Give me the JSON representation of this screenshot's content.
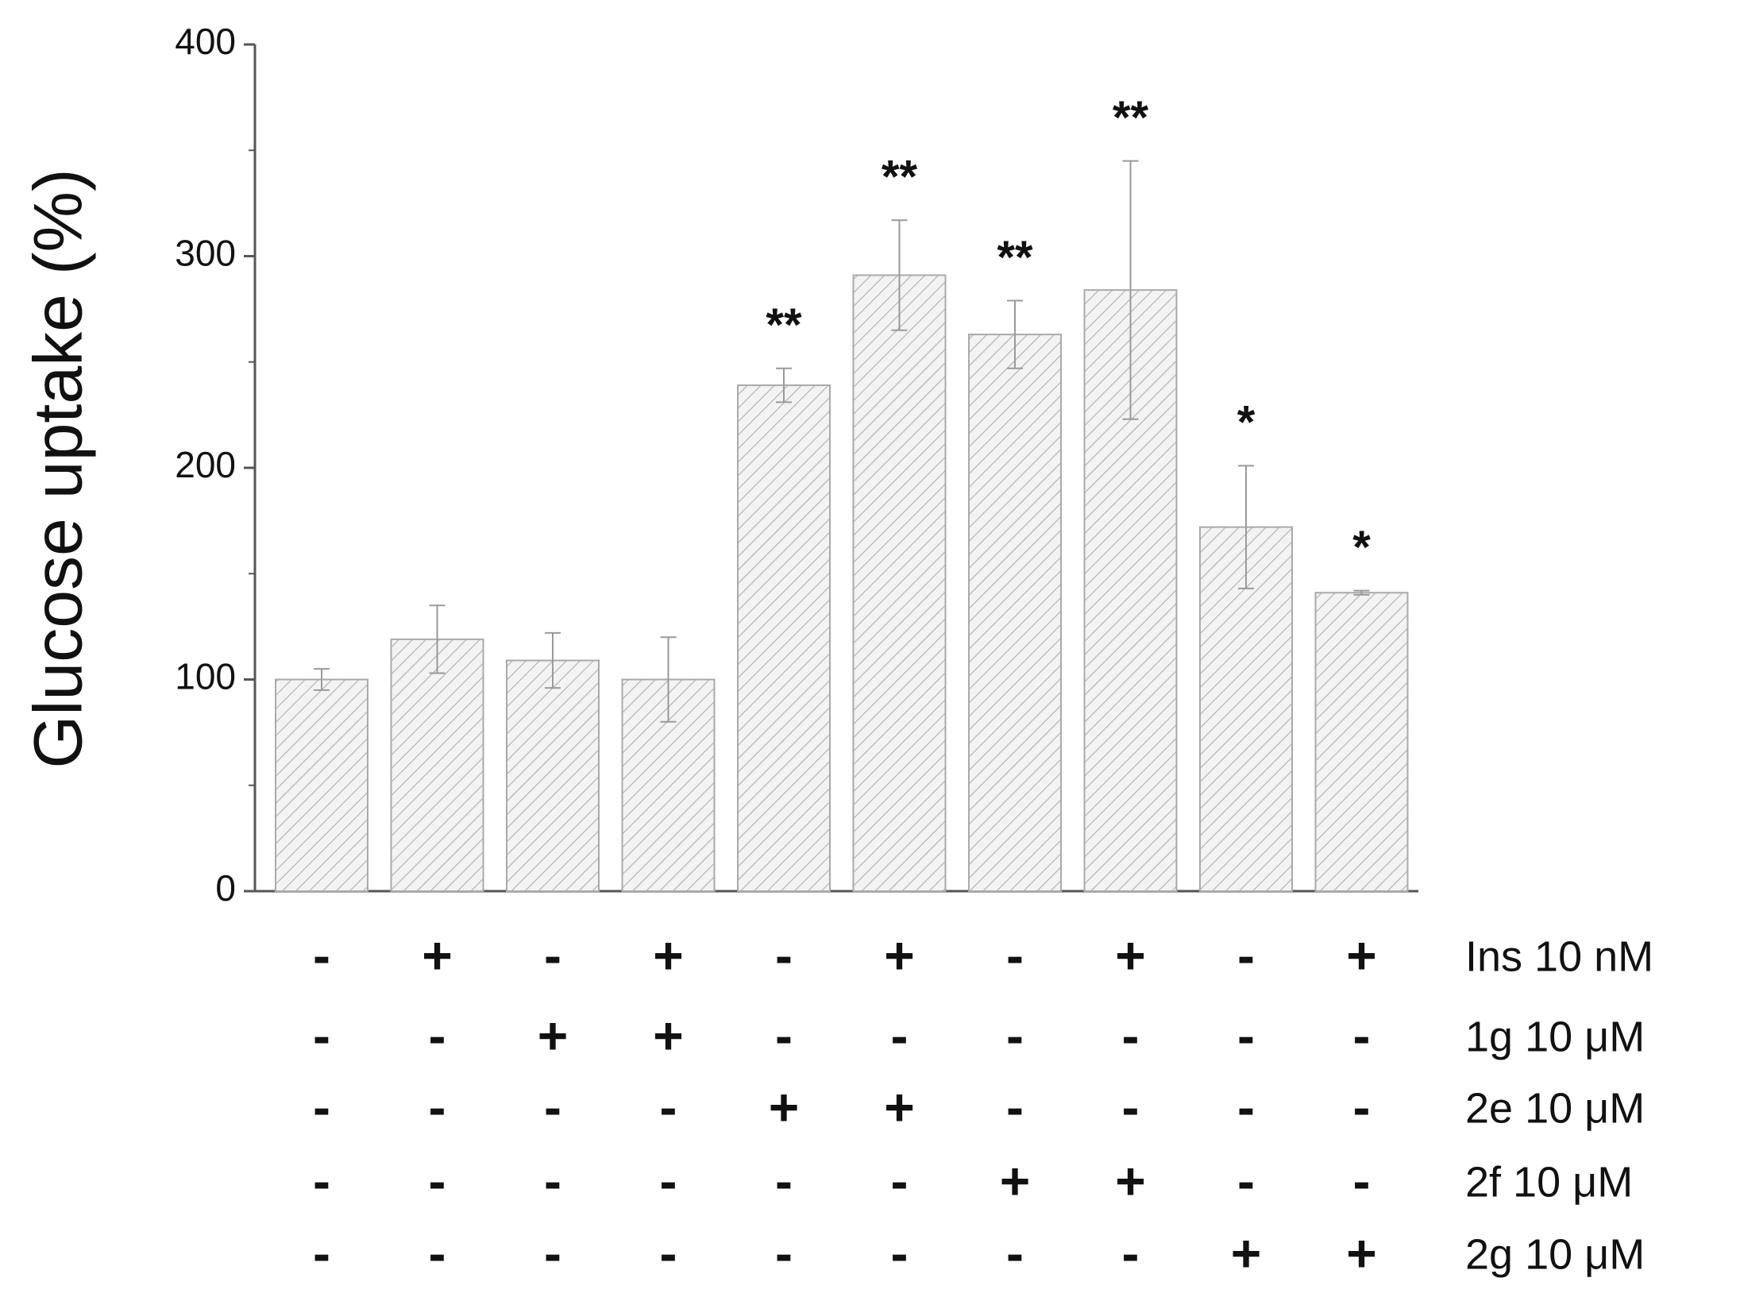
{
  "chart_data": {
    "type": "bar",
    "y_label": "Glucose uptake (%)",
    "values": [
      100,
      119,
      109,
      100,
      239,
      291,
      263,
      284,
      172,
      141
    ],
    "errors": [
      5,
      16,
      13,
      20,
      8,
      26,
      16,
      61,
      29,
      1
    ],
    "significance": [
      null,
      null,
      null,
      null,
      "**",
      "**",
      "**",
      "**",
      "*",
      "*"
    ],
    "color": "#f3f3f3",
    "hatch_color": "#b5b5b5",
    "edge_color": "#aaaaaa",
    "error_color": "#9a9a9a",
    "ylim": [
      0,
      400
    ],
    "yticks": [
      0,
      100,
      200,
      300,
      400
    ],
    "yminorticks": [
      50,
      150,
      250,
      350
    ],
    "treatments": [
      {
        "label": "Ins  10 nM",
        "signs": [
          "-",
          "+",
          "-",
          "+",
          "-",
          "+",
          "-",
          "+",
          "-",
          "+"
        ]
      },
      {
        "label": "1g 10 μM",
        "signs": [
          "-",
          "-",
          "+",
          "+",
          "-",
          "-",
          "-",
          "-",
          "-",
          "-"
        ]
      },
      {
        "label": "2e 10 μM",
        "signs": [
          "-",
          "-",
          "-",
          "-",
          "+",
          "+",
          "-",
          "-",
          "-",
          "-"
        ]
      },
      {
        "label": "2f  10 μM",
        "signs": [
          "-",
          "-",
          "-",
          "-",
          "-",
          "-",
          "+",
          "+",
          "-",
          "-"
        ]
      },
      {
        "label": "2g 10 μM",
        "signs": [
          "-",
          "-",
          "-",
          "-",
          "-",
          "-",
          "-",
          "-",
          "+",
          "+"
        ]
      }
    ]
  }
}
